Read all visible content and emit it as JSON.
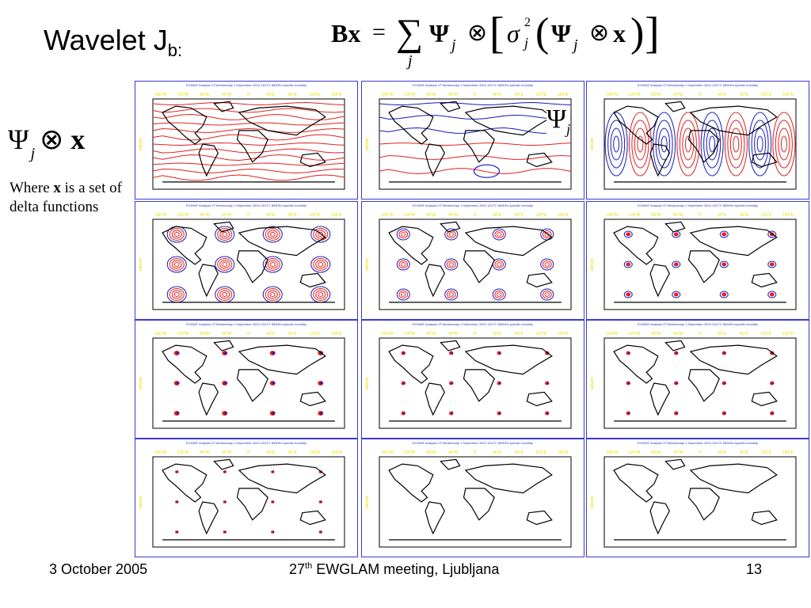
{
  "slide": {
    "title_main": "Wavelet J",
    "title_sub": "b:",
    "formula": {
      "lhs": "Bx",
      "equals": "=",
      "sum_symbol": "∑",
      "sum_index": "j",
      "psi": "Ψ",
      "psi_index": "j",
      "otimes": "⊗",
      "sigma": "σ",
      "sigma_sub": "j",
      "sigma_sup": "2",
      "x": "x"
    },
    "left_expression": {
      "psi": "Ψ",
      "index": "j",
      "otimes": "⊗",
      "x": "x"
    },
    "note": {
      "line_start": "Where",
      "bold": "x",
      "line_rest": "is a set of delta functions"
    },
    "overlay_psi": {
      "psi": "Ψ",
      "index": "j"
    }
  },
  "panels": {
    "header_text": "ECMWF Analysis VT:Wednesday 1 September 2004 12UTC 850hPa specific humidity",
    "lon_labels": [
      "160°W",
      "120°W",
      "80°W",
      "40°W",
      "0°",
      "40°E",
      "80°E",
      "120°E",
      "160°E"
    ],
    "lat_label_text": "latitude",
    "colors": {
      "border": "#3a3ad0",
      "positive": "#e02020",
      "negative": "#1a1ab8",
      "axis_text": "#e8e000",
      "header": "#3030c0"
    },
    "items": [
      {
        "pattern": "zonal-red"
      },
      {
        "pattern": "zonal-mixed"
      },
      {
        "pattern": "big-cells"
      },
      {
        "pattern": "medium-cells"
      },
      {
        "pattern": "small-cells"
      },
      {
        "pattern": "tiny-cells"
      },
      {
        "pattern": "dots"
      },
      {
        "pattern": "dots-small"
      },
      {
        "pattern": "dots-small"
      },
      {
        "pattern": "dots-faint"
      },
      {
        "pattern": "empty"
      },
      {
        "pattern": "empty"
      }
    ]
  },
  "footer": {
    "date": "3 October 2005",
    "meeting_pre": "27",
    "meeting_sup": "th",
    "meeting_post": " EWGLAM meeting, Ljubljana",
    "page": "13"
  }
}
